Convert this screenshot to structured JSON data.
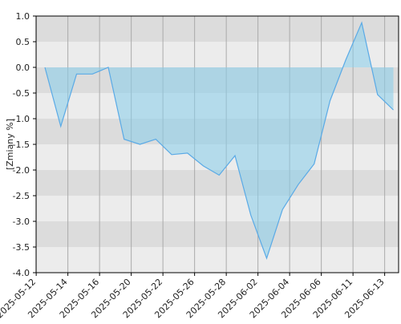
{
  "chart_data": {
    "type": "area",
    "ylabel": "[Zmiany %]",
    "categories": [
      "2025-05-12",
      null,
      "2025-05-14",
      null,
      "2025-05-16",
      null,
      "2025-05-20",
      null,
      "2025-05-22",
      null,
      "2025-05-26",
      null,
      "2025-05-28",
      null,
      "2025-06-02",
      null,
      "2025-06-04",
      null,
      "2025-06-06",
      null,
      "2025-06-11",
      null,
      "2025-06-13"
    ],
    "values": [
      0,
      -1.15,
      -0.13,
      -0.13,
      0,
      -1.4,
      -1.5,
      -1.4,
      -1.7,
      -1.67,
      -1.92,
      -2.1,
      -1.72,
      -2.88,
      -3.72,
      -2.77,
      -2.28,
      -1.88,
      -0.65,
      0.15,
      0.87,
      -0.53,
      -0.83
    ],
    "color": "#5aaae6",
    "ylim": [
      -4,
      1
    ],
    "yticks": [
      {
        "value": 1,
        "label": "1.0"
      },
      0.5,
      {
        "value": 0,
        "label": "0.0"
      },
      -0.5,
      {
        "value": -1,
        "label": "-1.0"
      },
      -1.5,
      {
        "value": -2,
        "label": "-2.0"
      },
      -2.5,
      {
        "value": -3,
        "label": "-3.0"
      },
      -3.5,
      {
        "value": -4,
        "label": "-4.0"
      }
    ],
    "grid": true
  }
}
